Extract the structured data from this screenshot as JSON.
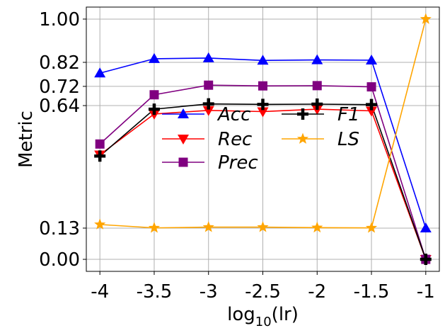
{
  "chart_data": {
    "type": "line",
    "x": [
      -4,
      -3.5,
      -3,
      -2.5,
      -2,
      -1.5,
      -1
    ],
    "x_tick_labels": [
      "-4",
      "-3.5",
      "-3",
      "-2.5",
      "-2",
      "-1.5",
      "-1"
    ],
    "y_ticks": [
      0.0,
      0.13,
      0.64,
      0.72,
      0.82,
      1.0
    ],
    "y_tick_labels": [
      "0.00",
      "0.13",
      "0.64",
      "0.72",
      "0.82",
      "1.00"
    ],
    "xlim": [
      -4.125,
      -0.875
    ],
    "ylim": [
      -0.05,
      1.05
    ],
    "xlabel_main": "log",
    "xlabel_sub": "10",
    "xlabel_tail": "(lr)",
    "ylabel": "Metric",
    "grid": true,
    "legend_position": "center",
    "series": [
      {
        "name": "Acc",
        "color": "#0000ff",
        "marker": "triangle-up",
        "values": [
          0.775,
          0.835,
          0.838,
          0.828,
          0.83,
          0.829,
          0.13
        ]
      },
      {
        "name": "Rec",
        "color": "#ff0000",
        "marker": "triangle-down",
        "values": [
          0.435,
          0.605,
          0.62,
          0.615,
          0.625,
          0.618,
          0.0
        ]
      },
      {
        "name": "Prec",
        "color": "#800080",
        "marker": "square",
        "values": [
          0.48,
          0.685,
          0.725,
          0.722,
          0.723,
          0.718,
          0.0
        ]
      },
      {
        "name": "F1",
        "color": "#000000",
        "marker": "plus",
        "values": [
          0.43,
          0.625,
          0.647,
          0.645,
          0.646,
          0.644,
          0.0
        ]
      },
      {
        "name": "LS",
        "color": "#ffa500",
        "marker": "star",
        "values": [
          0.145,
          0.131,
          0.134,
          0.134,
          0.132,
          0.131,
          1.0
        ]
      }
    ]
  }
}
